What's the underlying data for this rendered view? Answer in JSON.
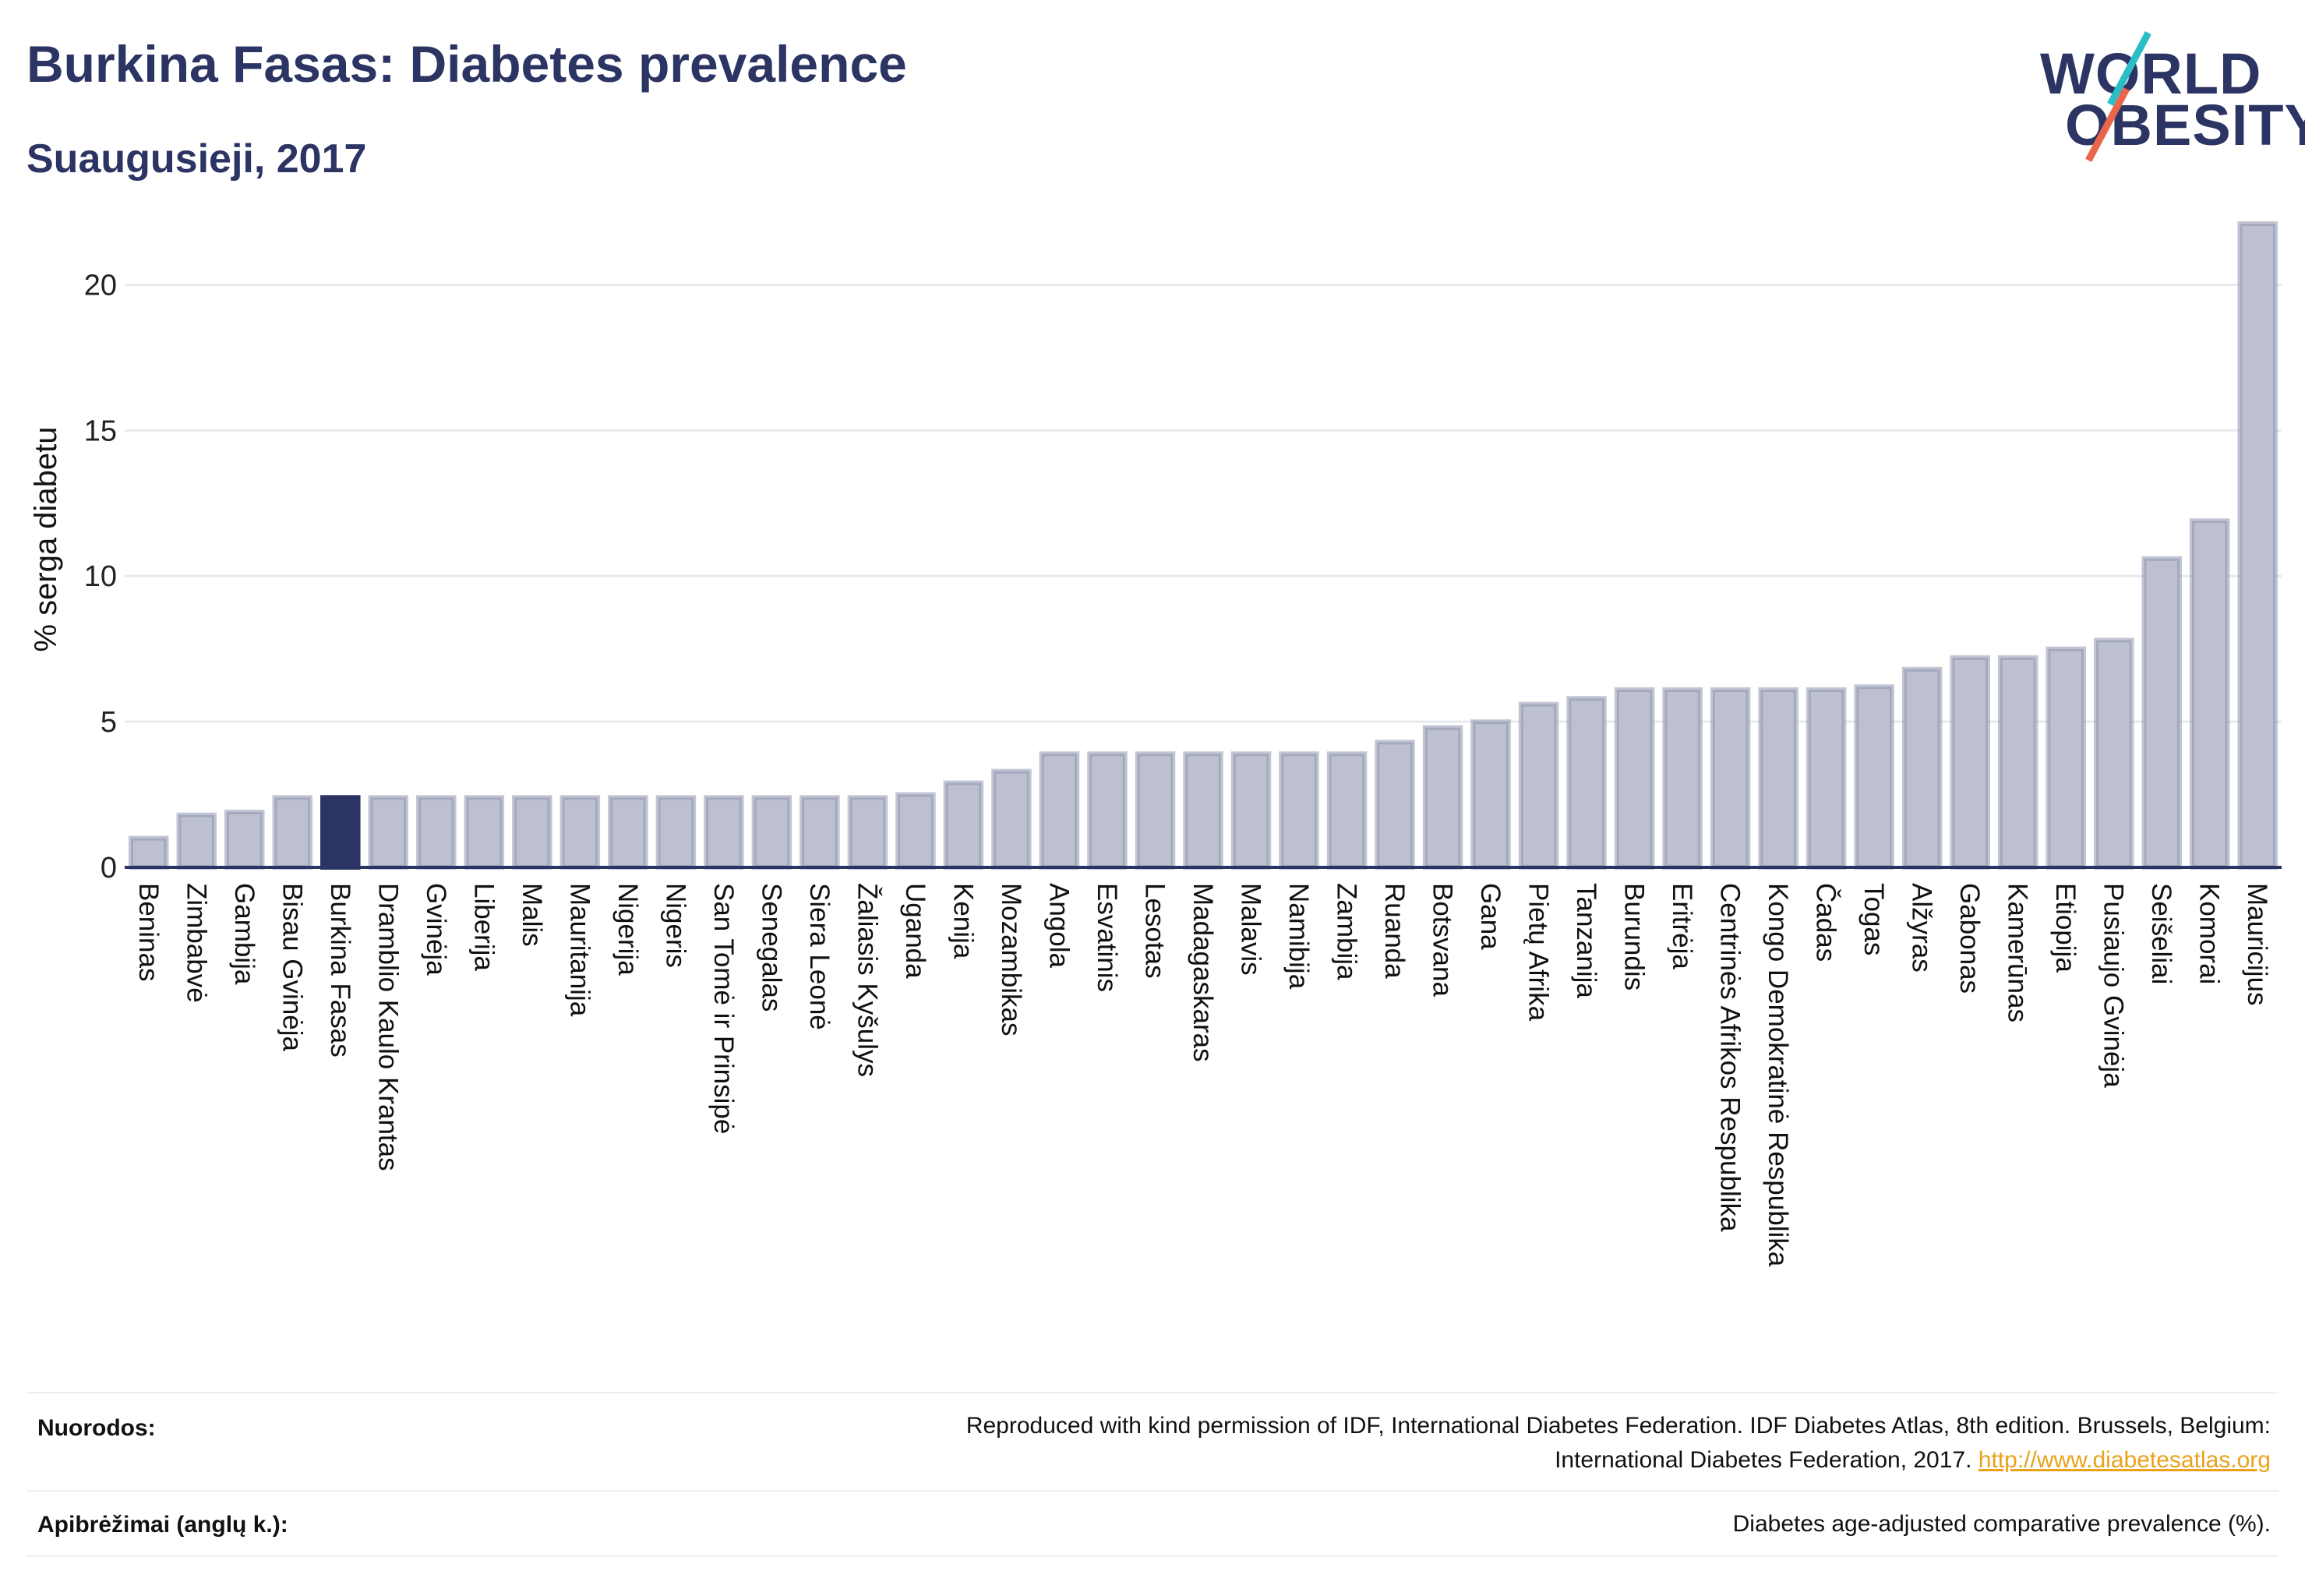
{
  "header": {
    "title": "Burkina Fasas: Diabetes prevalence",
    "subtitle": "Suaugusieji, 2017"
  },
  "logo": {
    "line1": "WORLD",
    "line2": "OBESITY",
    "accent_teal": "#2bbec6",
    "accent_coral": "#e9654c"
  },
  "colors": {
    "bar_default": "#bcc0cf",
    "bar_default_stroke": "#8f95b0",
    "bar_highlight": "#2b3462",
    "text_dark": "#2b3462",
    "link": "#e9a21a"
  },
  "chart_data": {
    "type": "bar",
    "title": "Burkina Fasas: Diabetes prevalence",
    "subtitle": "Suaugusieji, 2017",
    "ylabel": "% serga diabetu",
    "xlabel": "",
    "ylim": [
      0,
      22.5
    ],
    "yticks": [
      0,
      5,
      10,
      15,
      20
    ],
    "grid": true,
    "highlight": "Burkina Fasas",
    "categories": [
      "Beninas",
      "Zimbabvė",
      "Gambija",
      "Bisau Gvinėja",
      "Burkina Fasas",
      "Dramblio Kaulo Krantas",
      "Gvinėja",
      "Liberija",
      "Malis",
      "Mauritanija",
      "Nigerija",
      "Nigeris",
      "San Tomė ir Prinsipė",
      "Senegalas",
      "Siera Leonė",
      "Žaliasis Kyšulys",
      "Uganda",
      "Kenija",
      "Mozambikas",
      "Angola",
      "Esvatinis",
      "Lesotas",
      "Madagaskaras",
      "Malavis",
      "Namibija",
      "Zambija",
      "Ruanda",
      "Botsvana",
      "Gana",
      "Pietų Afrika",
      "Tanzanija",
      "Burundis",
      "Eritrėja",
      "Centrinės Afrikos Respublika",
      "Kongo Demokratinė Respublika",
      "Čadas",
      "Togas",
      "Alžyras",
      "Gabonas",
      "Kamerūnas",
      "Etiopija",
      "Pusiaujo Gvinėja",
      "Seišeliai",
      "Komorai",
      "Mauricijus"
    ],
    "values": [
      1.0,
      1.8,
      1.9,
      2.4,
      2.4,
      2.4,
      2.4,
      2.4,
      2.4,
      2.4,
      2.4,
      2.4,
      2.4,
      2.4,
      2.4,
      2.4,
      2.5,
      2.9,
      3.3,
      3.9,
      3.9,
      3.9,
      3.9,
      3.9,
      3.9,
      3.9,
      4.3,
      4.8,
      5.0,
      5.6,
      5.8,
      6.1,
      6.1,
      6.1,
      6.1,
      6.1,
      6.2,
      6.8,
      7.2,
      7.2,
      7.5,
      7.8,
      10.6,
      11.9,
      22.1
    ]
  },
  "footer": {
    "refs_label": "Nuorodos:",
    "refs_text_1": "Reproduced with kind permission of IDF, International Diabetes Federation. IDF Diabetes Atlas, 8th edition. Brussels, Belgium:",
    "refs_text_2": "International Diabetes Federation, 2017.",
    "refs_link": "http://www.diabetesatlas.org",
    "defs_label": "Apibrėžimai (anglų k.):",
    "defs_text": "Diabetes age-adjusted comparative prevalence (%)."
  }
}
